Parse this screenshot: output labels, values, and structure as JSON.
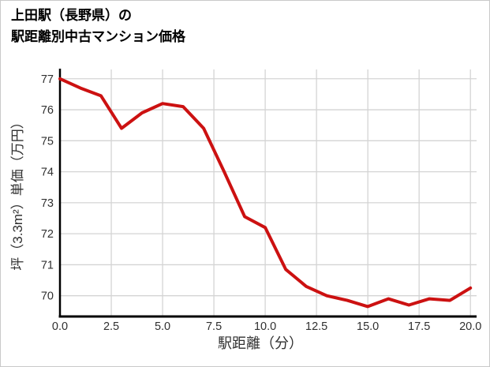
{
  "header": {
    "title_line1": "上田駅（長野県）の",
    "title_line2": "駅距離別中古マンション価格"
  },
  "chart_data": {
    "type": "line",
    "title": "上田駅（長野県）の駅距離別中古マンション価格",
    "xlabel": "駅距離（分）",
    "ylabel": "坪（3.3m²）単価（万円）",
    "x": [
      0,
      1,
      2,
      3,
      4,
      5,
      6,
      7,
      8,
      9,
      10,
      11,
      12,
      13,
      14,
      15,
      16,
      17,
      18,
      19,
      20
    ],
    "values": [
      77.0,
      76.7,
      76.45,
      75.4,
      75.9,
      76.2,
      76.1,
      75.4,
      74.0,
      72.55,
      72.2,
      70.85,
      70.3,
      70.0,
      69.85,
      69.65,
      69.9,
      69.7,
      69.9,
      69.85,
      70.25
    ],
    "x_tick_values": [
      0,
      2.5,
      5,
      7.5,
      10,
      12.5,
      15,
      17.5,
      20
    ],
    "x_tick_labels": [
      "0.0",
      "2.5",
      "5.0",
      "7.5",
      "10.0",
      "12.5",
      "15.0",
      "17.5",
      "20.0"
    ],
    "y_tick_values": [
      70,
      71,
      72,
      73,
      74,
      75,
      76,
      77
    ],
    "y_tick_labels": [
      "70",
      "71",
      "72",
      "73",
      "74",
      "75",
      "76",
      "77"
    ],
    "xlim": [
      0,
      20.3
    ],
    "ylim": [
      69.33,
      77.3
    ],
    "grid": true,
    "legend": "none",
    "line_color": "#cc1111",
    "line_width": 4,
    "axis_color": "#000000",
    "grid_color": "#d4d4d4",
    "tick_label_color": "#303030"
  }
}
